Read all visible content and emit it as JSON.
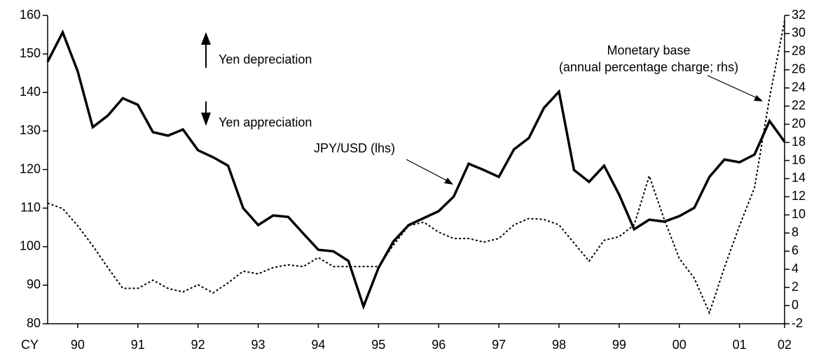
{
  "chart_data": {
    "type": "line",
    "x_label": "CY",
    "x": [
      1990,
      1990.25,
      1990.5,
      1990.75,
      1991,
      1991.25,
      1991.5,
      1991.75,
      1992,
      1992.25,
      1992.5,
      1992.75,
      1993,
      1993.25,
      1993.5,
      1993.75,
      1994,
      1994.25,
      1994.5,
      1994.75,
      1995,
      1995.25,
      1995.5,
      1995.75,
      1996,
      1996.25,
      1996.5,
      1996.75,
      1997,
      1997.25,
      1997.5,
      1997.75,
      1998,
      1998.25,
      1998.5,
      1998.75,
      1999,
      1999.25,
      1999.5,
      1999.75,
      2000,
      2000.25,
      2000.5,
      2000.75,
      2001,
      2001.25,
      2001.5,
      2001.75,
      2002,
      2002.25
    ],
    "xlim": [
      1990,
      2002.25
    ],
    "xticks": [
      {
        "value": 1990.5,
        "label": "90"
      },
      {
        "value": 1991.5,
        "label": "91"
      },
      {
        "value": 1992.5,
        "label": "92"
      },
      {
        "value": 1993.5,
        "label": "93"
      },
      {
        "value": 1994.5,
        "label": "94"
      },
      {
        "value": 1995.5,
        "label": "95"
      },
      {
        "value": 1996.5,
        "label": "96"
      },
      {
        "value": 1997.5,
        "label": "97"
      },
      {
        "value": 1998.5,
        "label": "98"
      },
      {
        "value": 1999.5,
        "label": "99"
      },
      {
        "value": 2000.5,
        "label": "00"
      },
      {
        "value": 2001.5,
        "label": "01"
      },
      {
        "value": 2002.25,
        "label": "02"
      }
    ],
    "ylim": [
      80,
      160
    ],
    "yticks": [
      80,
      90,
      100,
      110,
      120,
      130,
      140,
      150,
      160
    ],
    "y2lim": [
      -2,
      32
    ],
    "y2ticks": [
      -2,
      0,
      2,
      4,
      6,
      8,
      10,
      12,
      14,
      16,
      18,
      20,
      22,
      24,
      26,
      28,
      30,
      32
    ],
    "grid": false,
    "series": [
      {
        "name": "JPY/USD (lhs)",
        "color": "#000000",
        "style": "solid",
        "axis": "y",
        "values": [
          148,
          155.6,
          145.5,
          131,
          134,
          138.5,
          136.8,
          129.7,
          128.8,
          130.4,
          125,
          123.2,
          121,
          110,
          105.6,
          108.1,
          107.7,
          103.4,
          99.2,
          98.8,
          96.3,
          84.5,
          94.5,
          101.4,
          105.6,
          107.4,
          109.2,
          113,
          121.5,
          119.9,
          118.1,
          125.2,
          128.2,
          136,
          140.2,
          119.9,
          116.8,
          121,
          113.5,
          104.5,
          107,
          106.5,
          107.9,
          110.1,
          118.1,
          122.6,
          121.9,
          123.9,
          132.6,
          127.2
        ]
      },
      {
        "name": "Monetary base",
        "color": "#000000",
        "style": "dotted",
        "axis": "y2",
        "values": [
          11.3,
          10.7,
          8.8,
          6.6,
          4.2,
          1.9,
          1.9,
          2.8,
          1.9,
          1.5,
          2.3,
          1.4,
          2.5,
          3.8,
          3.5,
          4.2,
          4.5,
          4.3,
          5.3,
          4.3,
          4.3,
          4.3,
          4.3,
          6.7,
          8.8,
          9.2,
          8.1,
          7.4,
          7.4,
          7.0,
          7.4,
          8.9,
          9.6,
          9.5,
          8.9,
          6.9,
          4.9,
          7.2,
          7.6,
          8.9,
          14.3,
          9.5,
          5.2,
          3.0,
          -0.8,
          4.2,
          8.8,
          13,
          22.9,
          31.4
        ]
      }
    ],
    "annotations": {
      "up": "Yen depreciation",
      "down": "Yen appreciation",
      "rhs_note": "(annual percentage charge; rhs)"
    }
  }
}
